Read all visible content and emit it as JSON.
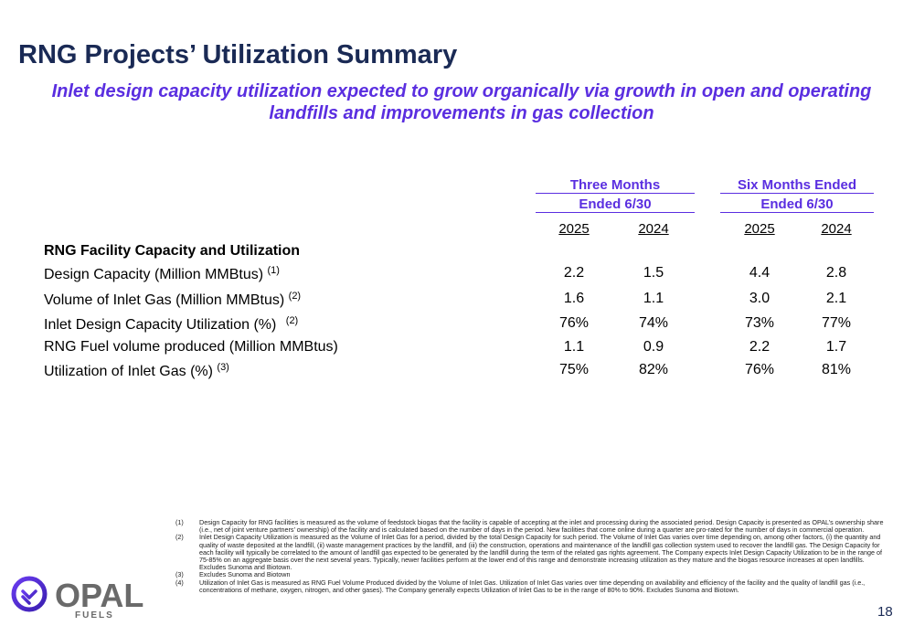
{
  "title": "RNG Projects’ Utilization Summary",
  "subtitle": "Inlet design capacity utilization expected to grow organically via growth in open and operating landfills and improvements in gas collection",
  "table": {
    "group1": {
      "line1": "Three Months",
      "line2": "Ended 6/30"
    },
    "group2": {
      "line1": "Six Months Ended",
      "line2": "Ended 6/30"
    },
    "years": [
      "2025",
      "2024",
      "2025",
      "2024"
    ],
    "section": "RNG Facility Capacity and Utilization",
    "rows": [
      {
        "label": "Design Capacity (Million MMBtus)",
        "note": "(1)",
        "values": [
          "2.2",
          "1.5",
          "4.4",
          "2.8"
        ]
      },
      {
        "label": "Volume of Inlet Gas (Million MMBtus)",
        "note": "(2)",
        "values": [
          "1.6",
          "1.1",
          "3.0",
          "2.1"
        ]
      },
      {
        "label": "Inlet Design Capacity Utilization (%)",
        "note": "(2)",
        "values": [
          "76%",
          "74%",
          "73%",
          "77%"
        ]
      },
      {
        "label": "RNG Fuel volume produced (Million MMBtus)",
        "note": "",
        "values": [
          "1.1",
          "0.9",
          "2.2",
          "1.7"
        ]
      },
      {
        "label": "Utilization of Inlet Gas (%)",
        "note": "(3)",
        "values": [
          "75%",
          "82%",
          "76%",
          "81%"
        ]
      }
    ]
  },
  "footnotes": [
    {
      "num": "(1)",
      "text": "Design Capacity for RNG facilities is measured as the volume of feedstock biogas that the facility is capable of accepting at the inlet and processing during the associated period. Design Capacity is presented as OPAL’s ownership share (i.e., net of joint venture partners’ ownership) of the facility and is calculated based on the number of days in the period. New facilities that come online during a quarter are pro-rated for the number of days in commercial operation."
    },
    {
      "num": "(2)",
      "text": "Inlet Design Capacity Utilization is measured as the Volume of Inlet Gas for a period, divided by the total Design Capacity for such period. The Volume of Inlet Gas varies over time depending on, among other factors, (i) the quantity and quality of waste deposited at the landfill, (ii) waste management practices by the landfill, and (iii) the construction, operations and maintenance of the landfill gas collection system used to recover the landfill gas. The Design Capacity for each facility will typically be correlated to the amount of landfill gas expected to be generated by the landfill during the term of the related gas rights agreement. The Company expects Inlet Design Capacity Utilization to be in the range of 75-85% on an aggregate basis over the next several years. Typically, newer facilities perform at the lower end of this range and demonstrate increasing utilization as they mature and the biogas resource increases at open landfills. Excludes Sunoma and Biotown."
    },
    {
      "num": "(3)",
      "text": "Excludes Sunoma and Biotown"
    },
    {
      "num": "(4)",
      "text": "Utilization of Inlet Gas is measured as RNG Fuel Volume Produced divided by the Volume of Inlet Gas. Utilization of Inlet Gas varies over time depending on availability and efficiency of the facility and the quality of landfill gas (i.e., concentrations of methane, oxygen, nitrogen, and other gases). The Company generally expects Utilization of Inlet Gas to be in the range of 80% to 90%. Excludes Sunoma and Biotown."
    }
  ],
  "logo": {
    "name": "OPAL",
    "sub": "FUELS",
    "icon": "opal-logo-icon"
  },
  "page_number": "18",
  "colors": {
    "title": "#1a2a55",
    "accent": "#5a2ee0"
  }
}
